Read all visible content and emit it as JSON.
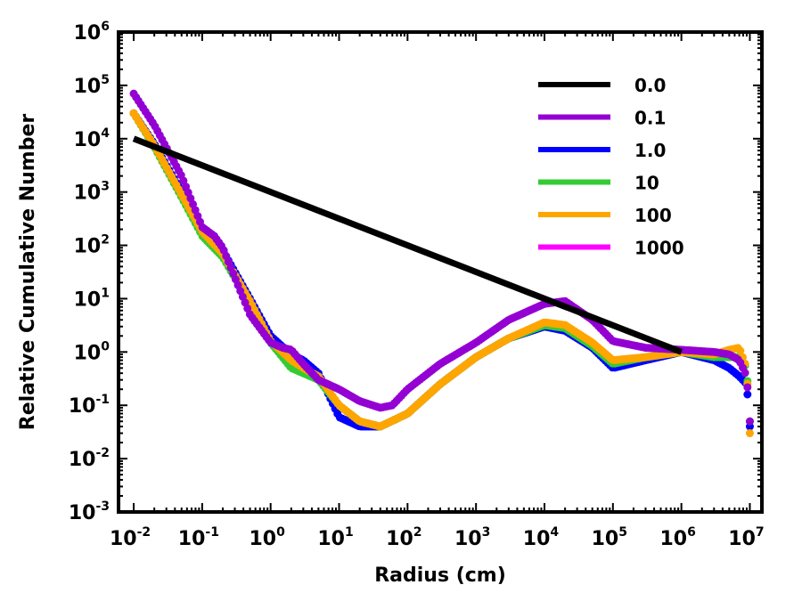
{
  "chart_data": {
    "type": "line",
    "xlabel": "Radius (cm)",
    "ylabel": "Relative Cumulative Number",
    "xscale": "log",
    "yscale": "log",
    "xlim": [
      0.006,
      15000000
    ],
    "ylim": [
      0.001,
      1000000
    ],
    "xticks": [
      {
        "base": "10",
        "exp": "-2",
        "value": 0.01
      },
      {
        "base": "10",
        "exp": "-1",
        "value": 0.1
      },
      {
        "base": "10",
        "exp": "0",
        "value": 1
      },
      {
        "base": "10",
        "exp": "1",
        "value": 10
      },
      {
        "base": "10",
        "exp": "2",
        "value": 100
      },
      {
        "base": "10",
        "exp": "3",
        "value": 1000
      },
      {
        "base": "10",
        "exp": "4",
        "value": 10000
      },
      {
        "base": "10",
        "exp": "5",
        "value": 100000
      },
      {
        "base": "10",
        "exp": "6",
        "value": 1000000
      },
      {
        "base": "10",
        "exp": "7",
        "value": 10000000
      }
    ],
    "yticks": [
      {
        "base": "10",
        "exp": "-3",
        "value": 0.001
      },
      {
        "base": "10",
        "exp": "-2",
        "value": 0.01
      },
      {
        "base": "10",
        "exp": "-1",
        "value": 0.1
      },
      {
        "base": "10",
        "exp": "0",
        "value": 1
      },
      {
        "base": "10",
        "exp": "1",
        "value": 10
      },
      {
        "base": "10",
        "exp": "2",
        "value": 100
      },
      {
        "base": "10",
        "exp": "3",
        "value": 1000
      },
      {
        "base": "10",
        "exp": "4",
        "value": 10000
      },
      {
        "base": "10",
        "exp": "5",
        "value": 100000
      },
      {
        "base": "10",
        "exp": "6",
        "value": 1000000
      }
    ],
    "legend_position": "top-right",
    "series": [
      {
        "name": "0.0",
        "color": "#000000",
        "style": "line",
        "x": [
          0.01,
          1000000
        ],
        "y": [
          10000,
          1
        ]
      },
      {
        "name": "0.1",
        "color": "#9400d3",
        "style": "markers",
        "x": [
          0.01,
          0.02,
          0.05,
          0.1,
          0.15,
          0.2,
          0.3,
          0.5,
          1,
          1.5,
          2,
          3,
          5,
          10,
          20,
          40,
          60,
          100,
          300,
          1000,
          3000,
          10000,
          20000,
          50000,
          100000,
          300000,
          1000000,
          3000000,
          5000000,
          7000000,
          9000000,
          10000000
        ],
        "y": [
          70000,
          18000,
          2000,
          220,
          150,
          90,
          25,
          5,
          1.5,
          1.2,
          1.1,
          0.6,
          0.3,
          0.2,
          0.12,
          0.09,
          0.1,
          0.2,
          0.6,
          1.5,
          4,
          8,
          9,
          4,
          1.6,
          1.2,
          1.1,
          1.0,
          0.9,
          0.7,
          0.35,
          0.05
        ]
      },
      {
        "name": "1.0",
        "color": "#0000ff",
        "style": "markers",
        "x": [
          0.01,
          0.02,
          0.05,
          0.1,
          0.2,
          0.5,
          1,
          2,
          3,
          5,
          10,
          20,
          40,
          100,
          300,
          1000,
          3000,
          10000,
          20000,
          50000,
          100000,
          300000,
          1000000,
          3000000,
          5000000,
          7000000,
          9000000,
          10000000
        ],
        "y": [
          30000,
          8000,
          1000,
          200,
          80,
          10,
          2,
          0.9,
          0.7,
          0.4,
          0.06,
          0.04,
          0.04,
          0.07,
          0.25,
          0.8,
          1.8,
          3,
          2.5,
          1.2,
          0.5,
          0.7,
          1.0,
          0.7,
          0.5,
          0.35,
          0.25,
          0.04
        ]
      },
      {
        "name": "10",
        "color": "#33cc33",
        "style": "markers",
        "x": [
          0.01,
          0.02,
          0.05,
          0.1,
          0.2,
          0.5,
          1,
          2,
          3,
          5,
          10,
          20,
          40,
          100,
          300,
          1000,
          3000,
          10000,
          20000,
          50000,
          100000,
          300000,
          1000000,
          3000000,
          5000000,
          7000000,
          9000000,
          10000000
        ],
        "y": [
          30000,
          7000,
          800,
          150,
          60,
          8,
          1.5,
          0.5,
          0.4,
          0.3,
          0.1,
          0.05,
          0.04,
          0.07,
          0.25,
          0.8,
          1.8,
          3.2,
          2.8,
          1.3,
          0.6,
          0.8,
          1.0,
          0.8,
          0.8,
          0.8,
          0.5,
          0.05
        ]
      },
      {
        "name": "100",
        "color": "#ffa500",
        "style": "markers",
        "x": [
          0.01,
          0.02,
          0.05,
          0.1,
          0.2,
          0.5,
          1,
          2,
          3,
          5,
          10,
          20,
          40,
          100,
          300,
          1000,
          3000,
          10000,
          20000,
          50000,
          100000,
          300000,
          1000000,
          3000000,
          5000000,
          7000000,
          9000000,
          10000000
        ],
        "y": [
          30000,
          7500,
          900,
          180,
          70,
          9,
          1.6,
          0.7,
          0.5,
          0.35,
          0.1,
          0.05,
          0.04,
          0.07,
          0.25,
          0.8,
          1.8,
          3.6,
          3.2,
          1.5,
          0.7,
          0.8,
          1.0,
          0.9,
          1.1,
          1.2,
          0.5,
          0.03
        ]
      },
      {
        "name": "1000",
        "color": "#ff00ff",
        "style": "markers",
        "x": [
          0.01,
          0.02,
          0.05,
          0.1,
          0.2,
          0.5,
          1,
          2,
          3,
          5,
          7,
          10,
          20,
          40,
          100,
          300,
          1000,
          3000,
          10000,
          20000,
          50000,
          100000,
          300000,
          1000000,
          3000000,
          5000000,
          7000000,
          8000000,
          9000000,
          10000000
        ],
        "y": [
          30000,
          8000,
          1000,
          150,
          50,
          7,
          1.5,
          0.9,
          0.6,
          0.3,
          0.25,
          0.12,
          0.05,
          0.04,
          0.08,
          0.3,
          1.0,
          2.2,
          4,
          4,
          2,
          0.9,
          0.8,
          1.0,
          1.1,
          1.3,
          1.4,
          1.3,
          0.4,
          0.025
        ]
      }
    ]
  }
}
